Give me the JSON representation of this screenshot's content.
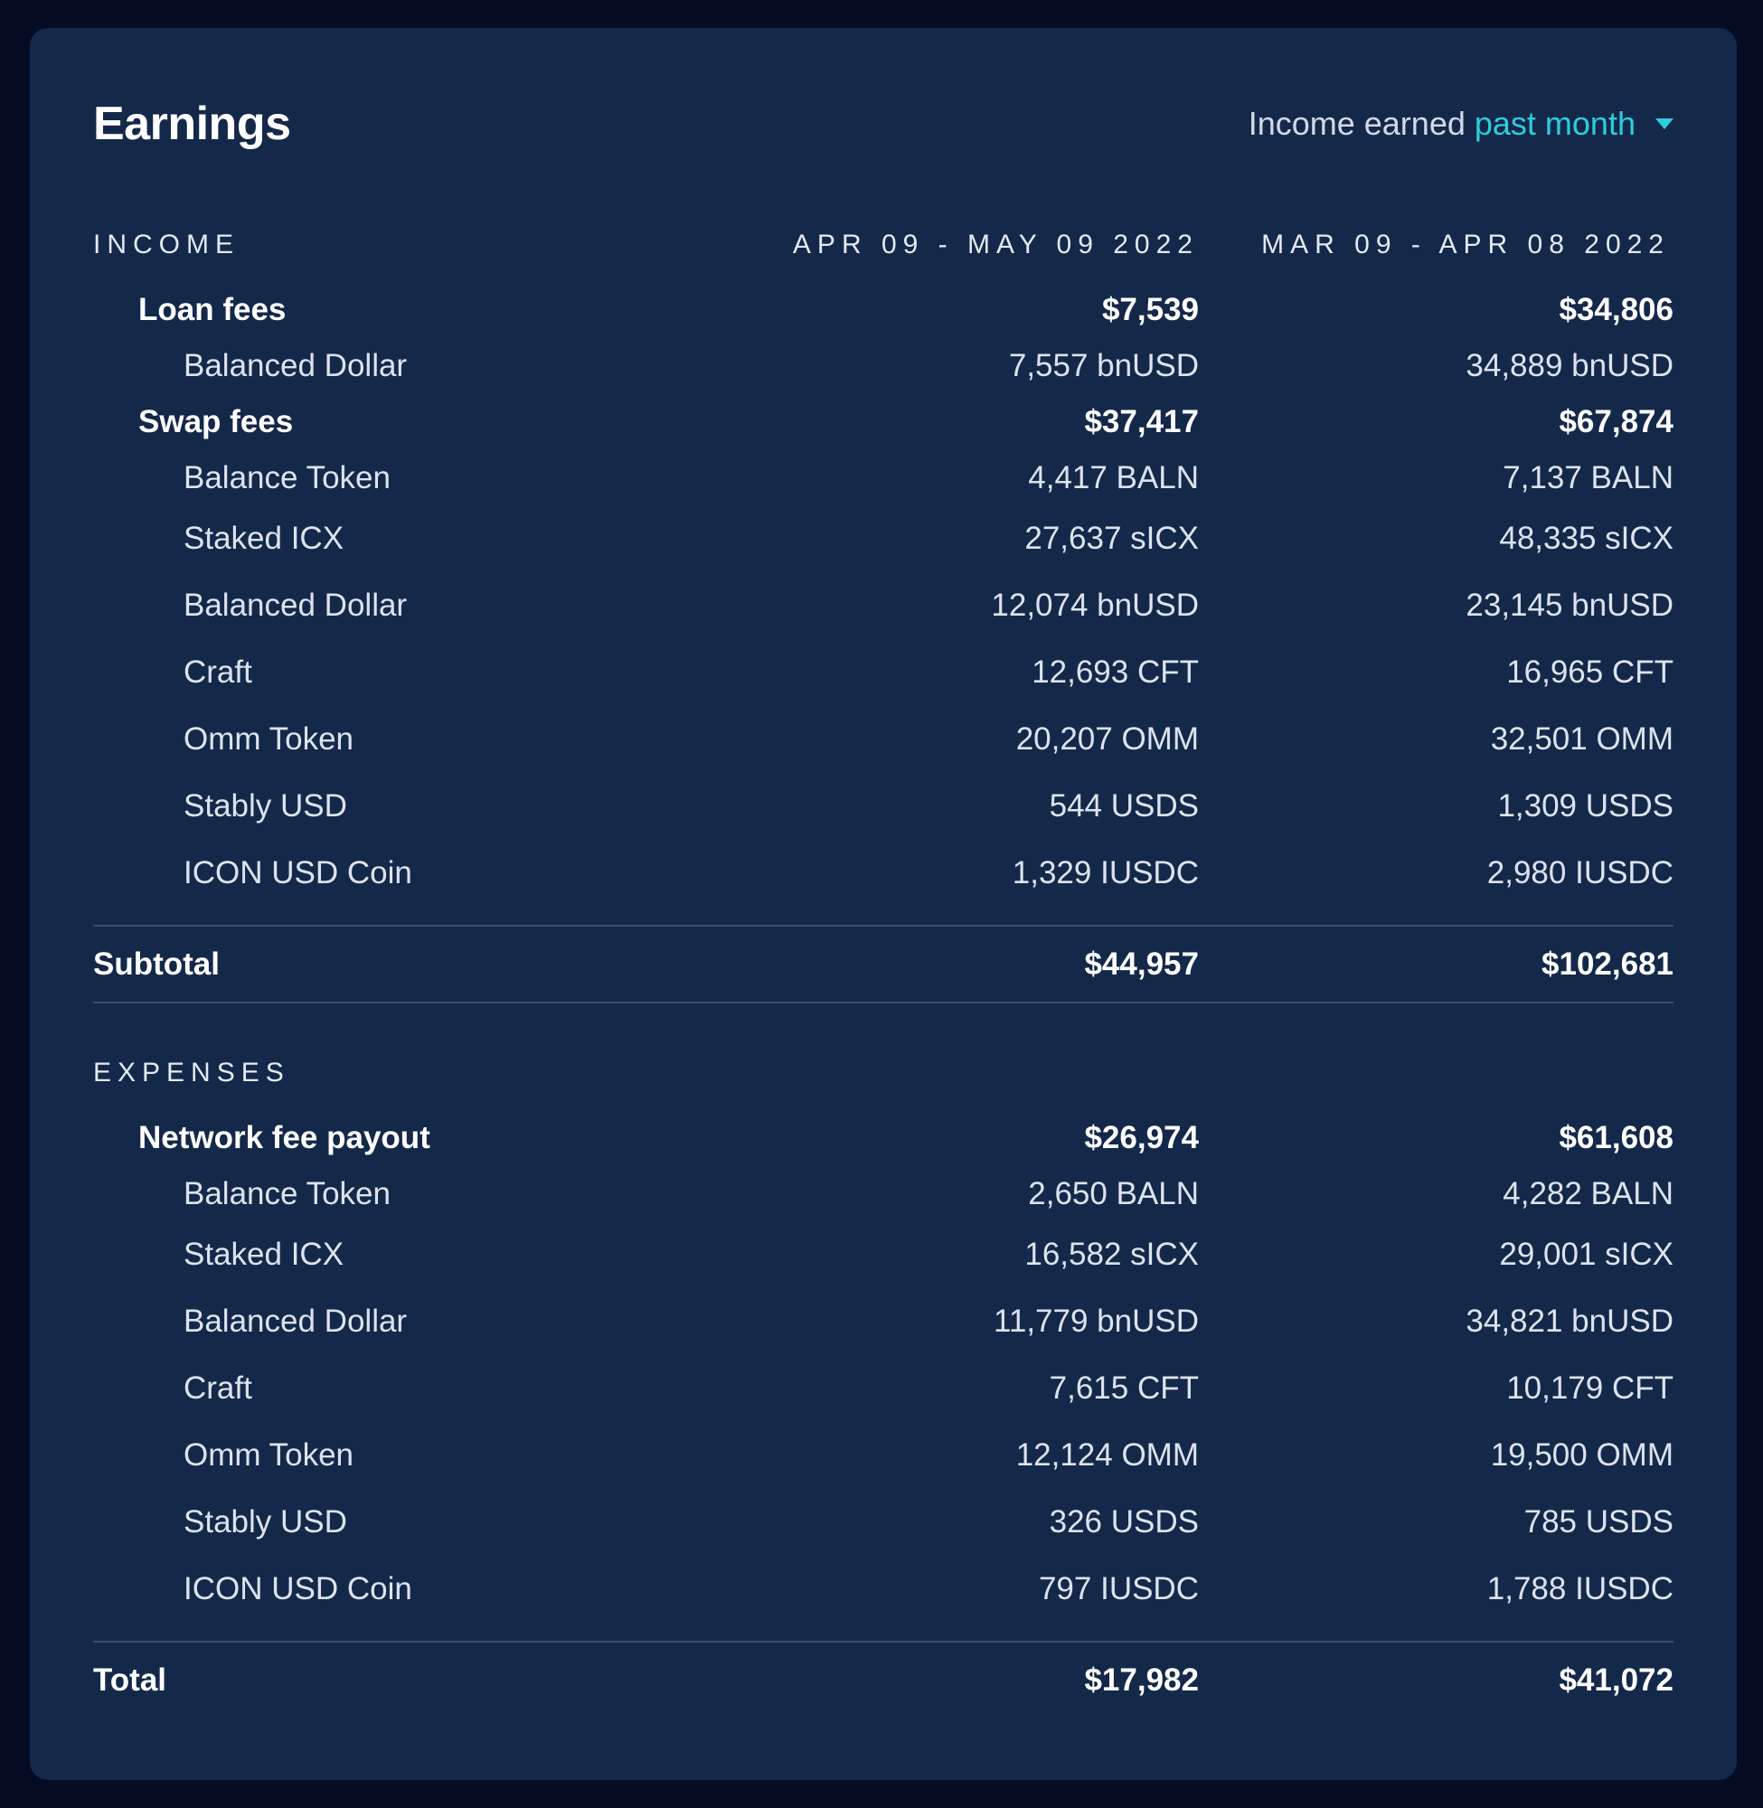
{
  "header": {
    "title": "Earnings",
    "filter_prefix": "Income earned",
    "filter_value": "past month"
  },
  "columns": {
    "period1": "APR 09 - MAY 09 2022",
    "period2": "MAR 09 - APR 08 2022"
  },
  "income": {
    "heading": "INCOME",
    "loan_fees": {
      "label": "Loan fees",
      "p1": "$7,539",
      "p2": "$34,806",
      "items": [
        {
          "label": "Balanced Dollar",
          "p1": "7,557 bnUSD",
          "p2": "34,889 bnUSD"
        }
      ]
    },
    "swap_fees": {
      "label": "Swap fees",
      "p1": "$37,417",
      "p2": "$67,874",
      "items": [
        {
          "label": "Balance Token",
          "p1": "4,417 BALN",
          "p2": "7,137 BALN"
        },
        {
          "label": "Staked ICX",
          "p1": "27,637 sICX",
          "p2": "48,335 sICX"
        },
        {
          "label": "Balanced Dollar",
          "p1": "12,074 bnUSD",
          "p2": "23,145 bnUSD"
        },
        {
          "label": "Craft",
          "p1": "12,693 CFT",
          "p2": "16,965 CFT"
        },
        {
          "label": "Omm Token",
          "p1": "20,207 OMM",
          "p2": "32,501 OMM"
        },
        {
          "label": "Stably USD",
          "p1": "544 USDS",
          "p2": "1,309 USDS"
        },
        {
          "label": "ICON USD Coin",
          "p1": "1,329 IUSDC",
          "p2": "2,980 IUSDC"
        }
      ]
    },
    "subtotal": {
      "label": "Subtotal",
      "p1": "$44,957",
      "p2": "$102,681"
    }
  },
  "expenses": {
    "heading": "EXPENSES",
    "network_fee_payout": {
      "label": "Network fee payout",
      "p1": "$26,974",
      "p2": "$61,608",
      "items": [
        {
          "label": "Balance Token",
          "p1": "2,650 BALN",
          "p2": "4,282 BALN"
        },
        {
          "label": "Staked ICX",
          "p1": "16,582 sICX",
          "p2": "29,001 sICX"
        },
        {
          "label": "Balanced Dollar",
          "p1": "11,779 bnUSD",
          "p2": "34,821 bnUSD"
        },
        {
          "label": "Craft",
          "p1": "7,615 CFT",
          "p2": "10,179 CFT"
        },
        {
          "label": "Omm Token",
          "p1": "12,124 OMM",
          "p2": "19,500 OMM"
        },
        {
          "label": "Stably USD",
          "p1": "326 USDS",
          "p2": "785 USDS"
        },
        {
          "label": "ICON USD Coin",
          "p1": "797 IUSDC",
          "p2": "1,788 IUSDC"
        }
      ]
    },
    "total": {
      "label": "Total",
      "p1": "$17,982",
      "p2": "$41,072"
    }
  },
  "colors": {
    "background": "#050b22",
    "card": "#14284a",
    "accent": "#2fccdc",
    "divider": "#3a4e6d"
  }
}
